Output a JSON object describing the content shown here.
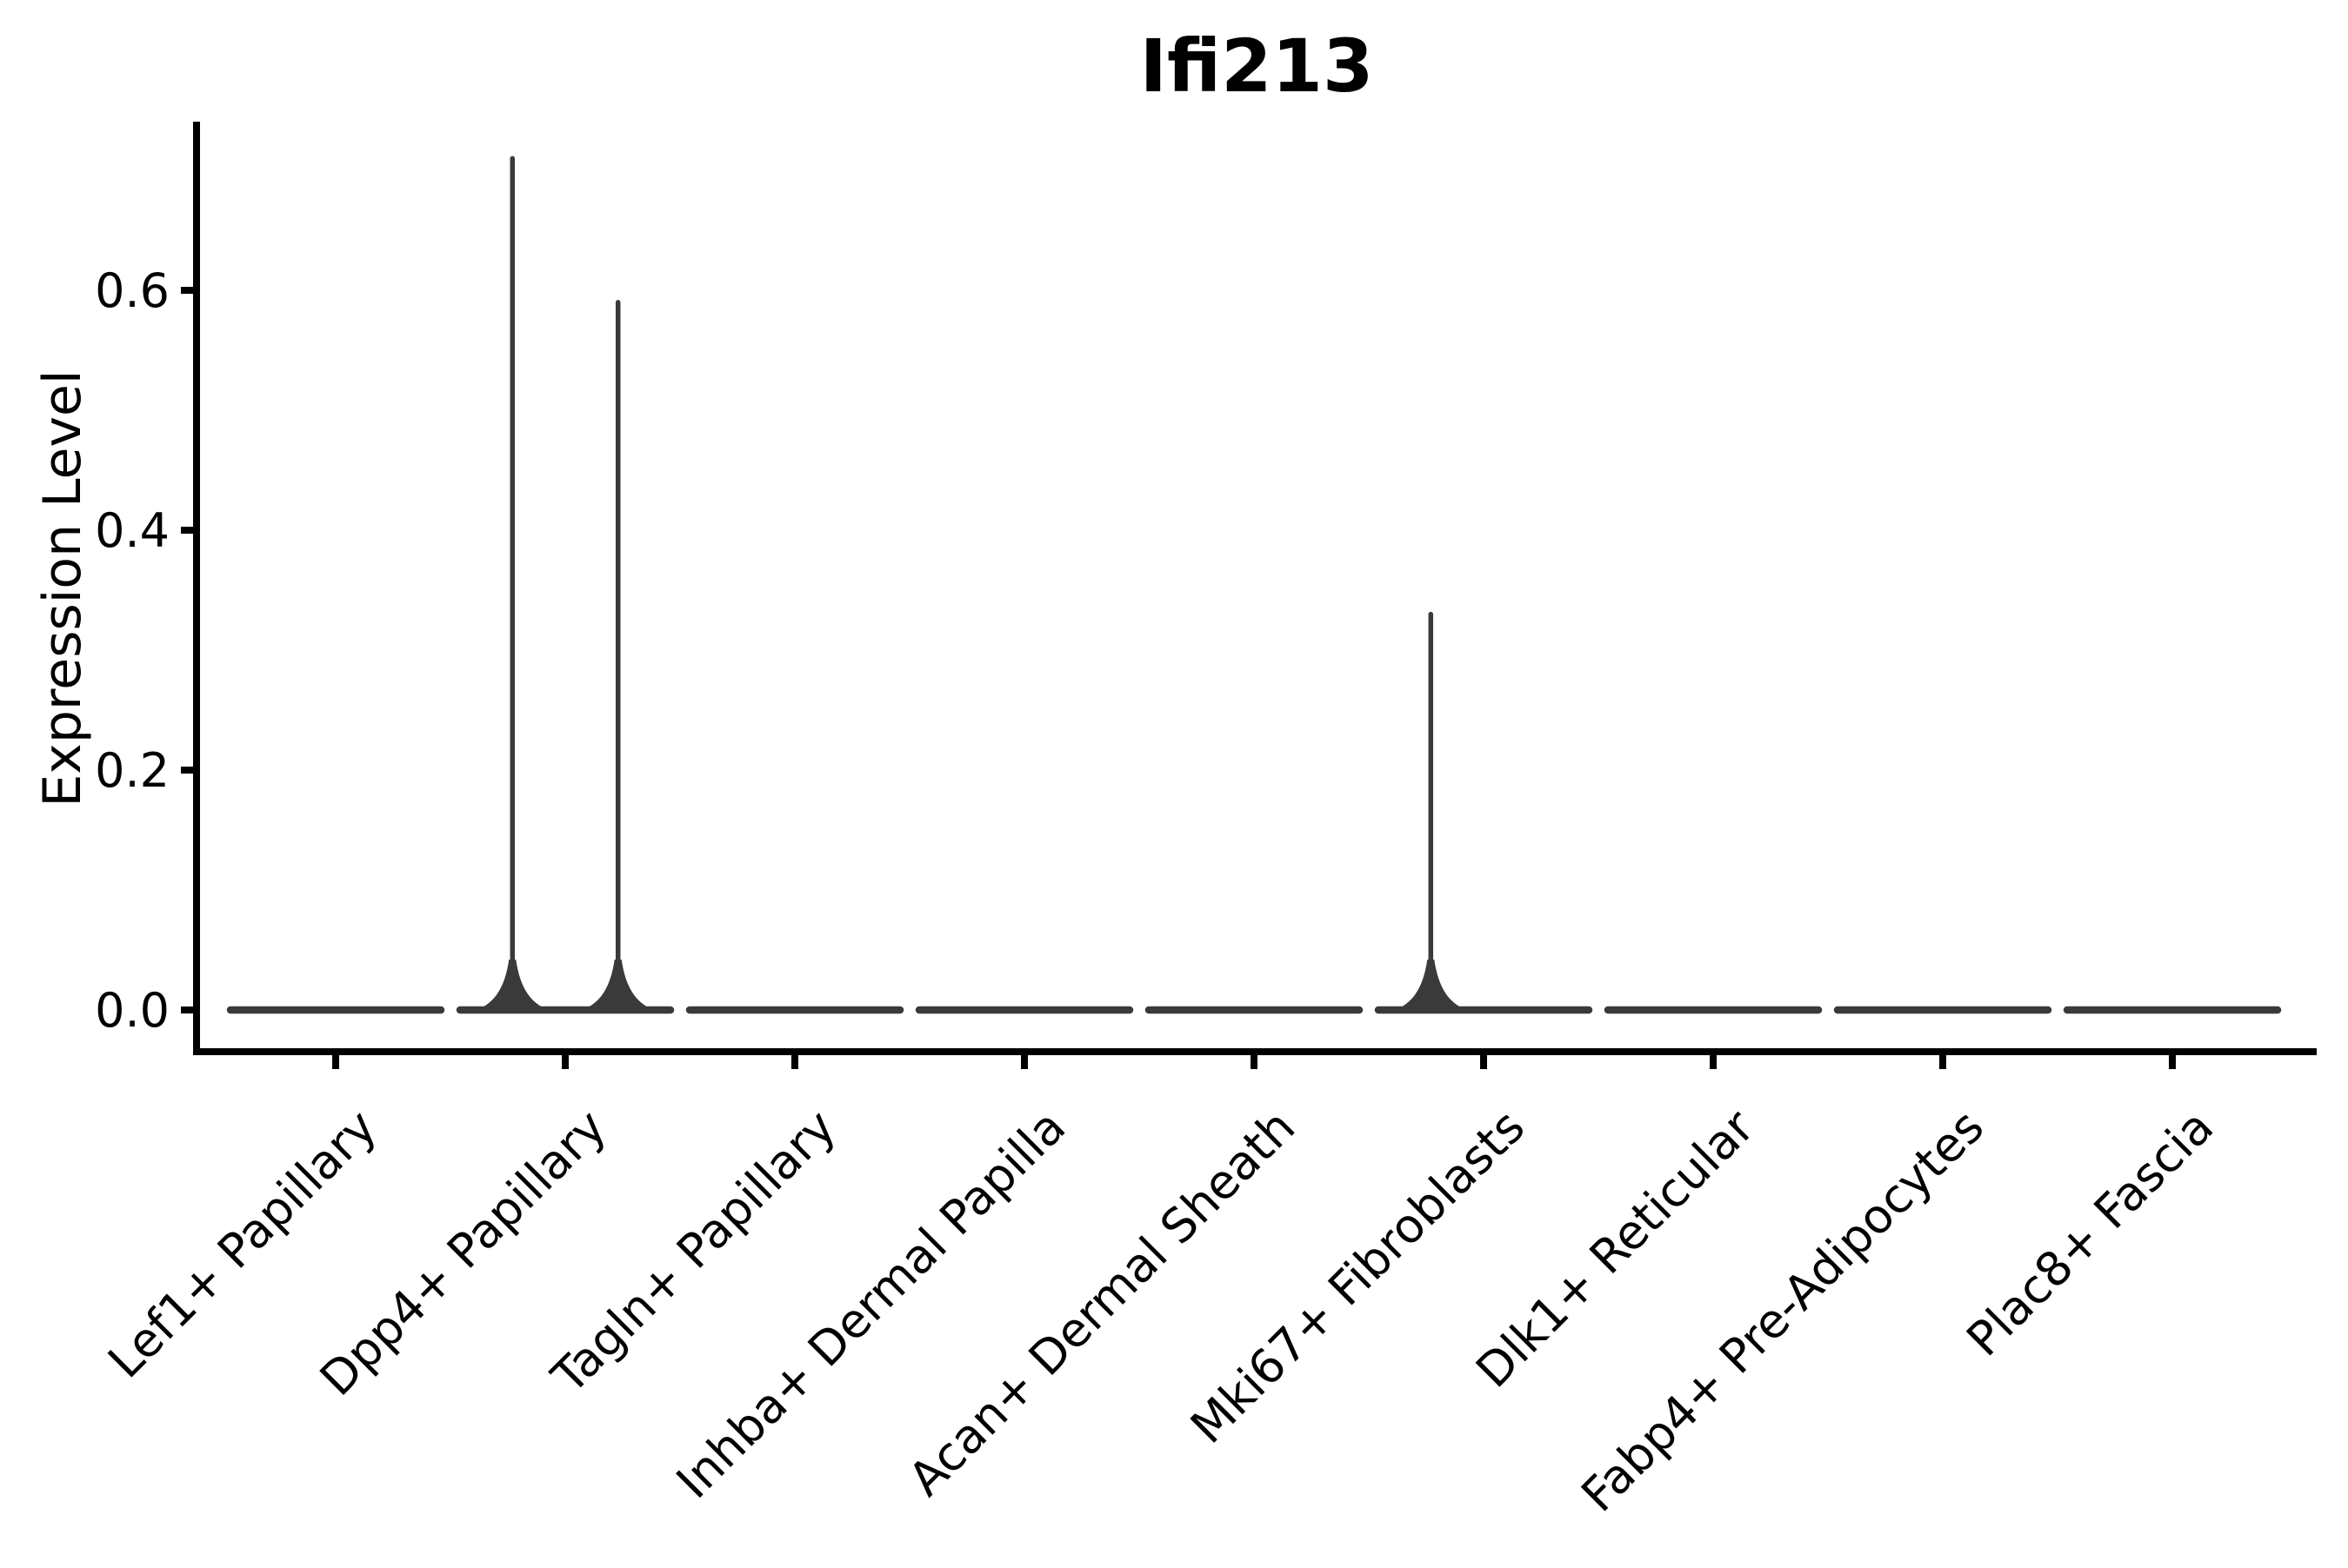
{
  "title": "Ifi213",
  "y_axis": {
    "label": "Expression Level",
    "tick_labels": [
      "0.0",
      "0.2",
      "0.4",
      "0.6"
    ],
    "tick_values": [
      0.0,
      0.2,
      0.4,
      0.6
    ]
  },
  "x_axis": {
    "categories": [
      "Lef1+ Papillary",
      "Dpp4+ Papillary",
      "Tagln+ Papillary",
      "Inhba+ Dermal Papilla",
      "Acan+ Dermal Sheath",
      "Mki67+ Fibroblasts",
      "Dlk1+ Reticular",
      "Fabp4+ Pre-Adipocytes",
      "Plac8+ Fascia"
    ]
  },
  "colors": {
    "background": "#ffffff",
    "axis": "#000000",
    "violin_stroke": "#3a3a3a"
  },
  "chart_data": {
    "type": "violin",
    "title": "Ifi213",
    "xlabel": "",
    "ylabel": "Expression Level",
    "ylim": [
      -0.035,
      0.74
    ],
    "yticks": [
      0.0,
      0.2,
      0.4,
      0.6
    ],
    "ytick_labels": [
      "0.0",
      "0.2",
      "0.4",
      "0.6"
    ],
    "grid": false,
    "legend": "none",
    "categories": [
      "Lef1+ Papillary",
      "Dpp4+ Papillary",
      "Tagln+ Papillary",
      "Inhba+ Dermal Papilla",
      "Acan+ Dermal Sheath",
      "Mki67+ Fibroblasts",
      "Dlk1+ Reticular",
      "Fabp4+ Pre-Adipocytes",
      "Plac8+ Fascia"
    ],
    "baseline_value": 0.0,
    "series": [
      {
        "name": "Lef1+ Papillary",
        "max_expression": 0.0,
        "spikes": []
      },
      {
        "name": "Dpp4+ Papillary",
        "max_expression": 0.71,
        "spikes": [
          {
            "offset": -0.23,
            "max": 0.71
          },
          {
            "offset": 0.23,
            "max": 0.59
          }
        ]
      },
      {
        "name": "Tagln+ Papillary",
        "max_expression": 0.0,
        "spikes": []
      },
      {
        "name": "Inhba+ Dermal Papilla",
        "max_expression": 0.0,
        "spikes": []
      },
      {
        "name": "Acan+ Dermal Sheath",
        "max_expression": 0.0,
        "spikes": []
      },
      {
        "name": "Mki67+ Fibroblasts",
        "max_expression": 0.33,
        "spikes": [
          {
            "offset": -0.23,
            "max": 0.33
          }
        ]
      },
      {
        "name": "Dlk1+ Reticular",
        "max_expression": 0.0,
        "spikes": []
      },
      {
        "name": "Fabp4+ Pre-Adipocytes",
        "max_expression": 0.0,
        "spikes": []
      },
      {
        "name": "Plac8+ Fascia",
        "max_expression": 0.0,
        "spikes": []
      }
    ]
  }
}
